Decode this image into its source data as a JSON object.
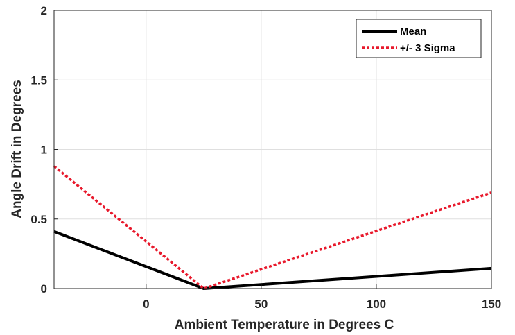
{
  "chart_data": {
    "type": "line",
    "xlabel": "Ambient Temperature in Degrees C",
    "ylabel": "Angle Drift in Degrees",
    "xlim": [
      -40,
      150
    ],
    "ylim": [
      0,
      2
    ],
    "xticks": [
      0,
      50,
      100,
      150
    ],
    "yticks": [
      0,
      0.5,
      1,
      1.5,
      2
    ],
    "xtick_labels": [
      "0",
      "50",
      "100",
      "150"
    ],
    "ytick_labels": [
      "0",
      "0.5",
      "1",
      "1.5",
      "2"
    ],
    "grid": true,
    "legend_position": "top-right",
    "series": [
      {
        "name": "Mean",
        "color": "#000000",
        "style": "solid",
        "x": [
          -40,
          25,
          150
        ],
        "y": [
          0.41,
          0.0,
          0.145
        ]
      },
      {
        "name": "+/- 3 Sigma",
        "color": "#e8192c",
        "style": "dotted",
        "x": [
          -40,
          25,
          150
        ],
        "y": [
          0.88,
          0.0,
          0.69
        ]
      }
    ]
  }
}
